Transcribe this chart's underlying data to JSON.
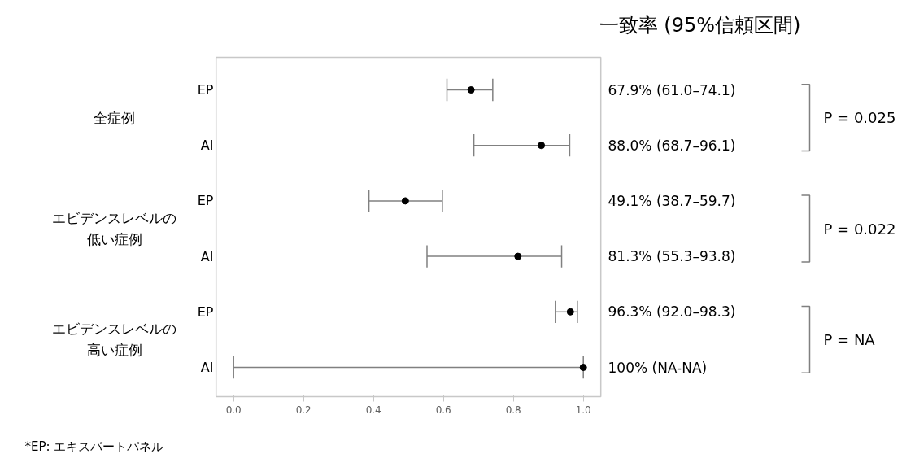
{
  "chart_data": {
    "type": "scatter",
    "orientation": "horizontal",
    "title": "一致率 (95%信頼区間)",
    "categories": [
      "EP",
      "AI",
      "EP",
      "AI",
      "EP",
      "AI"
    ],
    "values": [
      0.679,
      0.88,
      0.491,
      0.813,
      0.963,
      1.0
    ],
    "errors": [
      [
        0.61,
        0.741
      ],
      [
        0.687,
        0.961
      ],
      [
        0.387,
        0.597
      ],
      [
        0.553,
        0.938
      ],
      [
        0.92,
        0.983
      ],
      [
        0.0,
        1.0
      ]
    ],
    "color": "#000000",
    "marker": "circle",
    "xlim": [
      -0.05,
      1.05
    ],
    "xticks": [
      {
        "value": 0,
        "label": "0.0"
      },
      {
        "value": 0.2,
        "label": "0.2"
      },
      {
        "value": 0.4,
        "label": "0.4"
      },
      {
        "value": 0.6,
        "label": "0.6"
      },
      {
        "value": 0.8,
        "label": "0.8"
      },
      {
        "value": 1.0,
        "label": "1.0"
      }
    ],
    "grid": false,
    "annotations": [
      "全症例",
      "エビデンスレベルの低い症例",
      "エビデンスレベルの高い症例",
      "67.9% (61.0–74.1)",
      "88.0% (68.7–96.1)",
      "49.1% (38.7–59.7)",
      "81.3% (55.3–93.8)",
      "96.3% (92.0–98.3)",
      "100% (NA-NA)",
      "P = 0.025",
      "P = 0.022",
      "P = NA",
      "*EP: エキスパートパネル"
    ]
  }
}
